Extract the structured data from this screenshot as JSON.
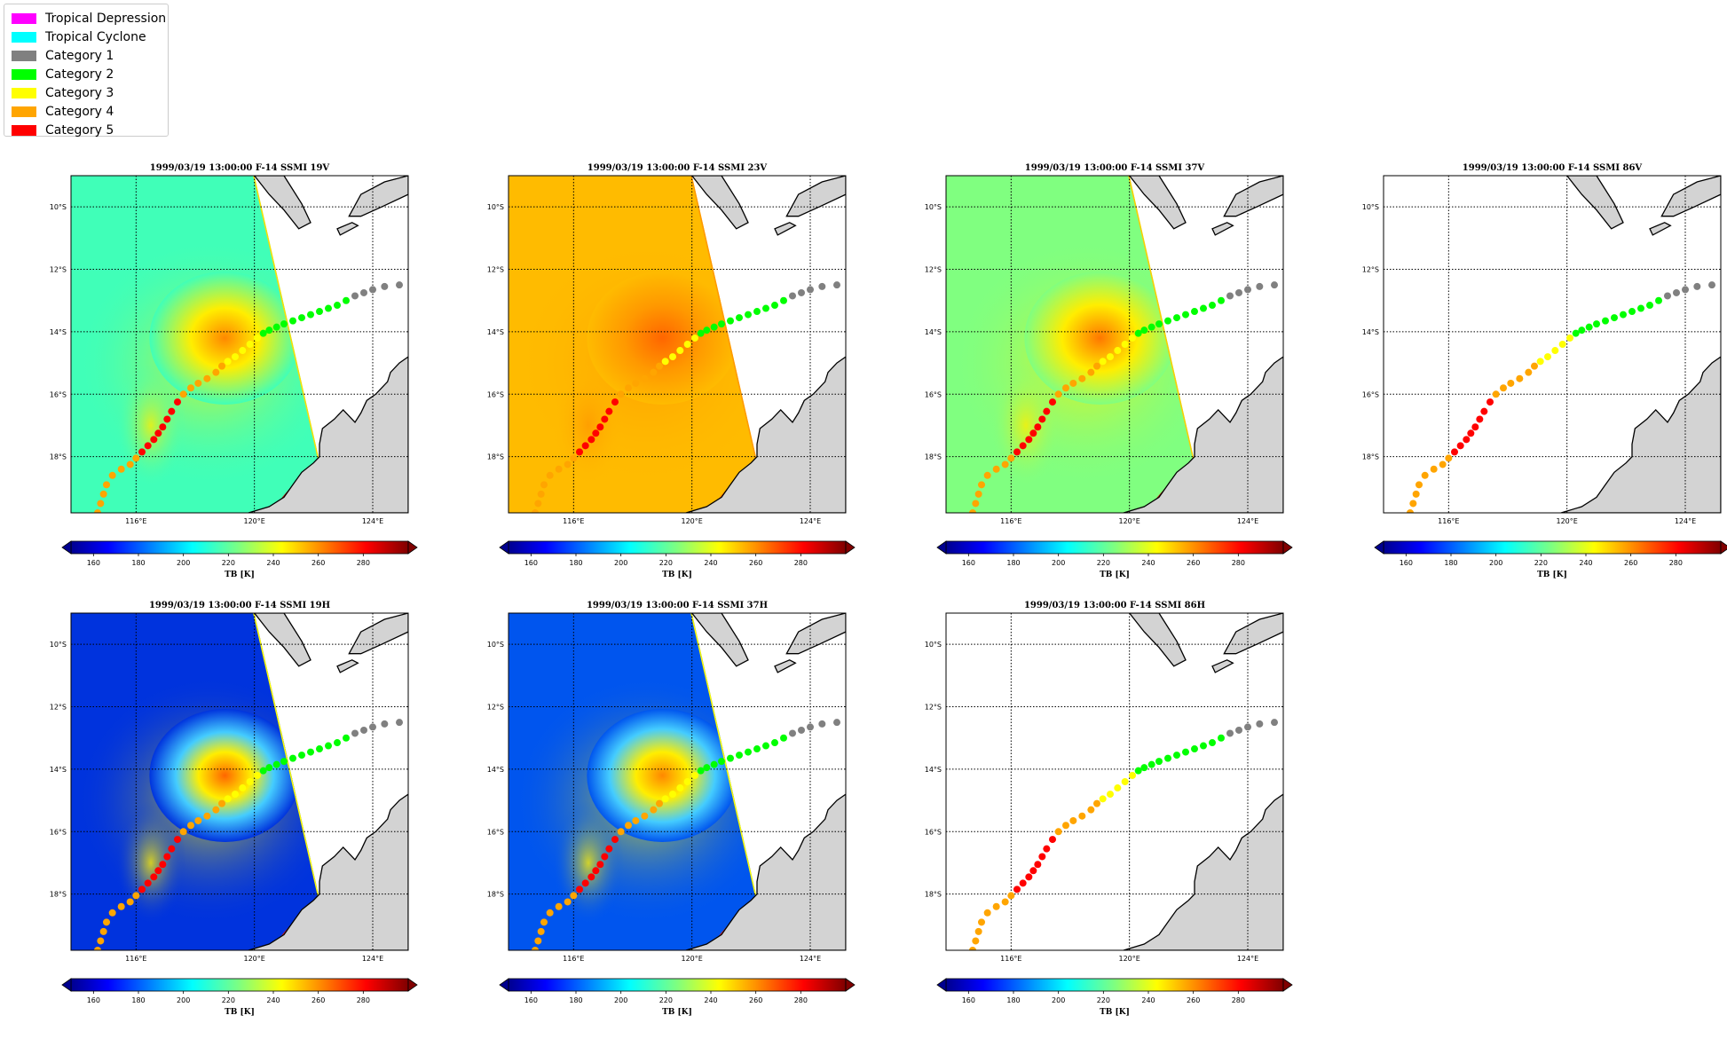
{
  "legend": {
    "items": [
      {
        "label": "Tropical Depression",
        "color": "#ff00ff"
      },
      {
        "label": "Tropical Cyclone",
        "color": "#00ffff"
      },
      {
        "label": "Category 1",
        "color": "#808080"
      },
      {
        "label": "Category 2",
        "color": "#00ff00"
      },
      {
        "label": "Category 3",
        "color": "#ffff00"
      },
      {
        "label": "Category 4",
        "color": "#ffa500"
      },
      {
        "label": "Category 5",
        "color": "#ff0000"
      }
    ]
  },
  "chart_data": [
    {
      "type": "heatmap",
      "title": "1999/03/19 13:00:00  F-14 SSMI 19V",
      "field": "19V"
    },
    {
      "type": "heatmap",
      "title": "1999/03/19 13:00:00  F-14 SSMI 23V",
      "field": "23V"
    },
    {
      "type": "heatmap",
      "title": "1999/03/19 13:00:00  F-14 SSMI 37V",
      "field": "37V"
    },
    {
      "type": "heatmap",
      "title": "1999/03/19 13:00:00  F-14 SSMI 86V",
      "field": "none"
    },
    {
      "type": "heatmap",
      "title": "1999/03/19 13:00:00  F-14 SSMI 19H",
      "field": "19H"
    },
    {
      "type": "heatmap",
      "title": "1999/03/19 13:00:00  F-14 SSMI 37H",
      "field": "37H"
    },
    {
      "type": "heatmap",
      "title": "1999/03/19 13:00:00  F-14 SSMI 86H",
      "field": "none"
    }
  ],
  "map": {
    "lon_range": [
      113.8,
      125.2
    ],
    "lat_range": [
      -19.8,
      -9.0
    ],
    "lon_ticks": [
      116,
      120,
      124
    ],
    "lon_tick_labels": [
      "116°E",
      "120°E",
      "124°E"
    ],
    "lat_ticks": [
      -10,
      -12,
      -14,
      -16,
      -18
    ],
    "lat_tick_labels": [
      "10°S",
      "12°S",
      "14°S",
      "16°S",
      "18°S"
    ]
  },
  "colorbar": {
    "label": "TB [K]",
    "ticks": [
      160,
      180,
      200,
      220,
      240,
      260,
      280
    ],
    "range": [
      150,
      300
    ],
    "extend": "both",
    "colormap": "jet"
  },
  "track": {
    "points": [
      {
        "lon": 114.7,
        "lat": -19.8,
        "cat": 4
      },
      {
        "lon": 114.8,
        "lat": -19.5,
        "cat": 4
      },
      {
        "lon": 114.9,
        "lat": -19.2,
        "cat": 4
      },
      {
        "lon": 115.0,
        "lat": -18.9,
        "cat": 4
      },
      {
        "lon": 115.2,
        "lat": -18.6,
        "cat": 4
      },
      {
        "lon": 115.5,
        "lat": -18.4,
        "cat": 4
      },
      {
        "lon": 115.8,
        "lat": -18.25,
        "cat": 4
      },
      {
        "lon": 116.0,
        "lat": -18.05,
        "cat": 4
      },
      {
        "lon": 116.2,
        "lat": -17.85,
        "cat": 5
      },
      {
        "lon": 116.4,
        "lat": -17.65,
        "cat": 5
      },
      {
        "lon": 116.6,
        "lat": -17.45,
        "cat": 5
      },
      {
        "lon": 116.75,
        "lat": -17.25,
        "cat": 5
      },
      {
        "lon": 116.9,
        "lat": -17.05,
        "cat": 5
      },
      {
        "lon": 117.05,
        "lat": -16.8,
        "cat": 5
      },
      {
        "lon": 117.2,
        "lat": -16.55,
        "cat": 5
      },
      {
        "lon": 117.4,
        "lat": -16.25,
        "cat": 5
      },
      {
        "lon": 117.6,
        "lat": -16.0,
        "cat": 4
      },
      {
        "lon": 117.85,
        "lat": -15.8,
        "cat": 4
      },
      {
        "lon": 118.1,
        "lat": -15.65,
        "cat": 4
      },
      {
        "lon": 118.4,
        "lat": -15.5,
        "cat": 4
      },
      {
        "lon": 118.7,
        "lat": -15.3,
        "cat": 4
      },
      {
        "lon": 118.9,
        "lat": -15.1,
        "cat": 4
      },
      {
        "lon": 119.1,
        "lat": -14.95,
        "cat": 3
      },
      {
        "lon": 119.35,
        "lat": -14.8,
        "cat": 3
      },
      {
        "lon": 119.6,
        "lat": -14.6,
        "cat": 3
      },
      {
        "lon": 119.85,
        "lat": -14.4,
        "cat": 3
      },
      {
        "lon": 120.1,
        "lat": -14.2,
        "cat": 3
      },
      {
        "lon": 120.3,
        "lat": -14.05,
        "cat": 2
      },
      {
        "lon": 120.5,
        "lat": -13.95,
        "cat": 2
      },
      {
        "lon": 120.75,
        "lat": -13.85,
        "cat": 2
      },
      {
        "lon": 121.0,
        "lat": -13.75,
        "cat": 2
      },
      {
        "lon": 121.3,
        "lat": -13.65,
        "cat": 2
      },
      {
        "lon": 121.6,
        "lat": -13.55,
        "cat": 2
      },
      {
        "lon": 121.9,
        "lat": -13.45,
        "cat": 2
      },
      {
        "lon": 122.2,
        "lat": -13.35,
        "cat": 2
      },
      {
        "lon": 122.5,
        "lat": -13.25,
        "cat": 2
      },
      {
        "lon": 122.8,
        "lat": -13.15,
        "cat": 2
      },
      {
        "lon": 123.1,
        "lat": -13.0,
        "cat": 2
      },
      {
        "lon": 123.4,
        "lat": -12.85,
        "cat": 1
      },
      {
        "lon": 123.7,
        "lat": -12.75,
        "cat": 1
      },
      {
        "lon": 124.0,
        "lat": -12.65,
        "cat": 1
      },
      {
        "lon": 124.4,
        "lat": -12.55,
        "cat": 1
      },
      {
        "lon": 124.9,
        "lat": -12.5,
        "cat": 1
      }
    ]
  }
}
